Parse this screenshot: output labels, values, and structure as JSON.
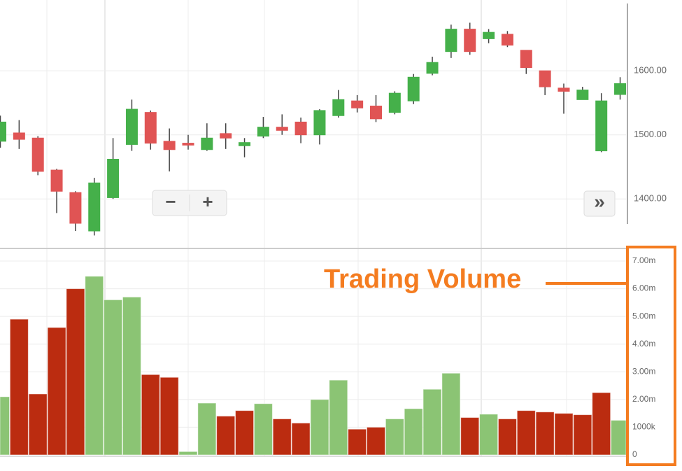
{
  "chart_data": [
    {
      "type": "candlestick",
      "up_color": "#45b04a",
      "down_color": "#e05454",
      "open": [
        1490,
        1503,
        1495,
        1445,
        1410,
        1350,
        1402,
        1485,
        1535,
        1490,
        1487,
        1477,
        1502,
        1483,
        1498,
        1512,
        1520,
        1500,
        1530,
        1553,
        1545,
        1535,
        1553,
        1596,
        1630,
        1665,
        1650,
        1657,
        1632,
        1600,
        1573,
        1555,
        1475,
        1563
      ],
      "high": [
        1530,
        1523,
        1498,
        1447,
        1412,
        1433,
        1495,
        1555,
        1538,
        1510,
        1500,
        1518,
        1518,
        1495,
        1528,
        1532,
        1527,
        1540,
        1570,
        1562,
        1562,
        1568,
        1595,
        1622,
        1672,
        1675,
        1665,
        1662,
        1632,
        1600,
        1580,
        1575,
        1565,
        1590
      ],
      "low": [
        1480,
        1478,
        1437,
        1378,
        1350,
        1343,
        1400,
        1475,
        1477,
        1443,
        1477,
        1475,
        1478,
        1465,
        1495,
        1500,
        1487,
        1485,
        1527,
        1535,
        1520,
        1532,
        1548,
        1593,
        1620,
        1625,
        1643,
        1637,
        1595,
        1562,
        1533,
        1555,
        1473,
        1555
      ],
      "close": [
        1520,
        1493,
        1443,
        1412,
        1362,
        1425,
        1462,
        1540,
        1487,
        1477,
        1484,
        1495,
        1495,
        1488,
        1512,
        1507,
        1500,
        1538,
        1555,
        1542,
        1525,
        1565,
        1590,
        1613,
        1665,
        1630,
        1660,
        1640,
        1605,
        1575,
        1568,
        1570,
        1553,
        1580
      ],
      "ylim": [
        1326,
        1705
      ],
      "yticks": [
        {
          "value": 1400,
          "label": "1400.00"
        },
        {
          "value": 1500,
          "label": "1500.00"
        },
        {
          "value": 1600,
          "label": "1600.00"
        }
      ],
      "controls": {
        "zoom_out": "−",
        "zoom_in": "+",
        "scroll": "»"
      }
    },
    {
      "type": "bar",
      "annotation": "Trading Volume",
      "values": [
        2.1,
        4.9,
        2.2,
        4.6,
        6.0,
        6.45,
        5.6,
        5.7,
        2.9,
        2.8,
        0.12,
        1.87,
        1.4,
        1.6,
        1.85,
        1.3,
        1.15,
        2.0,
        2.7,
        0.93,
        1.0,
        1.3,
        1.67,
        2.37,
        2.95,
        1.35,
        1.47,
        1.3,
        1.6,
        1.55,
        1.5,
        1.45,
        2.25,
        1.25
      ],
      "colors": [
        "#8bc474",
        "#bb2c10",
        "#bb2c10",
        "#bb2c10",
        "#bb2c10",
        "#8bc474",
        "#8bc474",
        "#8bc474",
        "#bb2c10",
        "#bb2c10",
        "#8bc474",
        "#8bc474",
        "#bb2c10",
        "#bb2c10",
        "#8bc474",
        "#bb2c10",
        "#bb2c10",
        "#8bc474",
        "#8bc474",
        "#bb2c10",
        "#bb2c10",
        "#8bc474",
        "#8bc474",
        "#8bc474",
        "#8bc474",
        "#bb2c10",
        "#8bc474",
        "#bb2c10",
        "#bb2c10",
        "#bb2c10",
        "#bb2c10",
        "#bb2c10",
        "#bb2c10",
        "#8bc474"
      ],
      "ylim": [
        0,
        7
      ],
      "yticks": [
        0,
        {
          "value": 1,
          "label": "1000k"
        },
        {
          "value": 2,
          "label": "2.00m"
        },
        {
          "value": 3,
          "label": "3.00m"
        },
        {
          "value": 4,
          "label": "4.00m"
        },
        {
          "value": 5,
          "label": "5.00m"
        },
        {
          "value": 6,
          "label": "6.00m"
        },
        {
          "value": 7,
          "label": "7.00m"
        }
      ]
    }
  ]
}
